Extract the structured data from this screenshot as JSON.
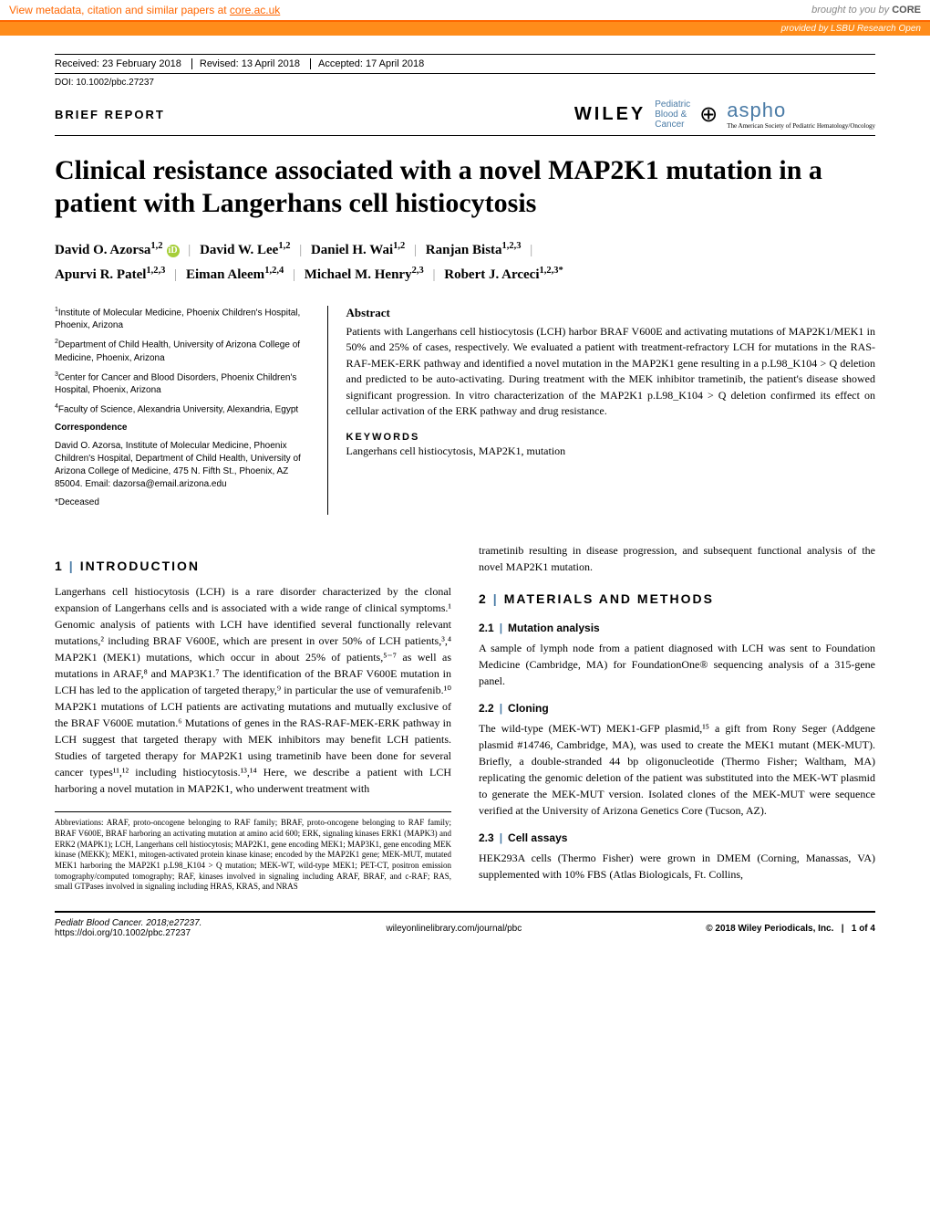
{
  "core_banner": {
    "left_text": "View metadata, citation and similar papers at ",
    "left_link": "core.ac.uk",
    "right_prefix": "brought to you by ",
    "right_logo": "CORE"
  },
  "provided_by": {
    "prefix": "provided by ",
    "source": "LSBU Research Open"
  },
  "meta": {
    "received": "Received: 23 February 2018",
    "revised": "Revised: 13 April 2018",
    "accepted": "Accepted: 17 April 2018",
    "doi": "DOI: 10.1002/pbc.27237"
  },
  "header": {
    "brief": "BRIEF REPORT",
    "wiley": "WILEY",
    "pbc_line1": "Pediatric",
    "pbc_line2": "Blood &",
    "pbc_line3": "Cancer",
    "aspho": "aspho",
    "aspho_sub": "The American Society of Pediatric Hematology/Oncology"
  },
  "title": "Clinical resistance associated with a novel MAP2K1 mutation in a patient with Langerhans cell histiocytosis",
  "authors": [
    {
      "name": "David O. Azorsa",
      "sup": "1,2",
      "orcid": true
    },
    {
      "name": "David W. Lee",
      "sup": "1,2"
    },
    {
      "name": "Daniel H. Wai",
      "sup": "1,2"
    },
    {
      "name": "Ranjan Bista",
      "sup": "1,2,3"
    },
    {
      "name": "Apurvi R. Patel",
      "sup": "1,2,3"
    },
    {
      "name": "Eiman Aleem",
      "sup": "1,2,4"
    },
    {
      "name": "Michael M. Henry",
      "sup": "2,3"
    },
    {
      "name": "Robert J. Arceci",
      "sup": "1,2,3*"
    }
  ],
  "affiliations": {
    "a1": "Institute of Molecular Medicine, Phoenix Children's Hospital, Phoenix, Arizona",
    "a2": "Department of Child Health, University of Arizona College of Medicine, Phoenix, Arizona",
    "a3": "Center for Cancer and Blood Disorders, Phoenix Children's Hospital, Phoenix, Arizona",
    "a4": "Faculty of Science, Alexandria University, Alexandria, Egypt",
    "corr_head": "Correspondence",
    "corr_body": "David O. Azorsa, Institute of Molecular Medicine, Phoenix Children's Hospital, Department of Child Health, University of Arizona College of Medicine, 475 N. Fifth St., Phoenix, AZ 85004. Email: dazorsa@email.arizona.edu",
    "deceased": "*Deceased"
  },
  "abstract": {
    "head": "Abstract",
    "body": "Patients with Langerhans cell histiocytosis (LCH) harbor BRAF V600E and activating mutations of MAP2K1/MEK1 in 50% and 25% of cases, respectively. We evaluated a patient with treatment-refractory LCH for mutations in the RAS-RAF-MEK-ERK pathway and identified a novel mutation in the MAP2K1 gene resulting in a p.L98_K104 > Q deletion and predicted to be auto-activating. During treatment with the MEK inhibitor trametinib, the patient's disease showed significant progression. In vitro characterization of the MAP2K1 p.L98_K104 > Q deletion confirmed its effect on cellular activation of the ERK pathway and drug resistance.",
    "kw_head": "KEYWORDS",
    "kw_body": "Langerhans cell histiocytosis, MAP2K1, mutation"
  },
  "sections": {
    "intro_head": "INTRODUCTION",
    "intro_num": "1",
    "intro_body": "Langerhans cell histiocytosis (LCH) is a rare disorder characterized by the clonal expansion of Langerhans cells and is associated with a wide range of clinical symptoms.¹ Genomic analysis of patients with LCH have identified several functionally relevant mutations,² including BRAF V600E, which are present in over 50% of LCH patients,³,⁴ MAP2K1 (MEK1) mutations, which occur in about 25% of patients,⁵⁻⁷ as well as mutations in ARAF,⁸ and MAP3K1.⁷ The identification of the BRAF V600E mutation in LCH has led to the application of targeted therapy,⁹ in particular the use of vemurafenib.¹⁰ MAP2K1 mutations of LCH patients are activating mutations and mutually exclusive of the BRAF V600E mutation.⁶ Mutations of genes in the RAS-RAF-MEK-ERK pathway in LCH suggest that targeted therapy with MEK inhibitors may benefit LCH patients. Studies of targeted therapy for MAP2K1 using trametinib have been done for several cancer types¹¹,¹² including histiocytosis.¹³,¹⁴ Here, we describe a patient with LCH harboring a novel mutation in MAP2K1, who underwent treatment with",
    "col2_cont": "trametinib resulting in disease progression, and subsequent functional analysis of the novel MAP2K1 mutation.",
    "methods_num": "2",
    "methods_head": "MATERIALS AND METHODS",
    "s21_num": "2.1",
    "s21_head": "Mutation analysis",
    "s21_body": "A sample of lymph node from a patient diagnosed with LCH was sent to Foundation Medicine (Cambridge, MA) for FoundationOne® sequencing analysis of a 315-gene panel.",
    "s22_num": "2.2",
    "s22_head": "Cloning",
    "s22_body": "The wild-type (MEK-WT) MEK1-GFP plasmid,¹⁵ a gift from Rony Seger (Addgene plasmid #14746, Cambridge, MA), was used to create the MEK1 mutant (MEK-MUT). Briefly, a double-stranded 44 bp oligonucleotide (Thermo Fisher; Waltham, MA) replicating the genomic deletion of the patient was substituted into the MEK-WT plasmid to generate the MEK-MUT version. Isolated clones of the MEK-MUT were sequence verified at the University of Arizona Genetics Core (Tucson, AZ).",
    "s23_num": "2.3",
    "s23_head": "Cell assays",
    "s23_body": "HEK293A cells (Thermo Fisher) were grown in DMEM (Corning, Manassas, VA) supplemented with 10% FBS (Atlas Biologicals, Ft. Collins,"
  },
  "abbrev": "Abbreviations: ARAF, proto-oncogene belonging to RAF family; BRAF, proto-oncogene belonging to RAF family; BRAF V600E, BRAF harboring an activating mutation at amino acid 600; ERK, signaling kinases ERK1 (MAPK3) and ERK2 (MAPK1); LCH, Langerhans cell histiocytosis; MAP2K1, gene encoding MEK1; MAP3K1, gene encoding MEK kinase (MEKK); MEK1, mitogen-activated protein kinase kinase; encoded by the MAP2K1 gene; MEK-MUT, mutated MEK1 harboring the MAP2K1 p.L98_K104 > Q mutation; MEK-WT, wild-type MEK1; PET-CT, positron emission tomography/computed tomography; RAF, kinases involved in signaling including ARAF, BRAF, and c-RAF; RAS, small GTPases involved in signaling including HRAS, KRAS, and NRAS",
  "footer": {
    "left1": "Pediatr Blood Cancer. 2018;e27237.",
    "left2": "https://doi.org/10.1002/pbc.27237",
    "center": "wileyonlinelibrary.com/journal/pbc",
    "right_c": "© 2018 Wiley Periodicals, Inc.",
    "right_page": "1 of 4"
  },
  "colors": {
    "core_orange": "#ff6600",
    "provided_bg": "#ff8c1a",
    "journal_blue": "#4a7ba6",
    "orcid_green": "#a6ce39"
  }
}
